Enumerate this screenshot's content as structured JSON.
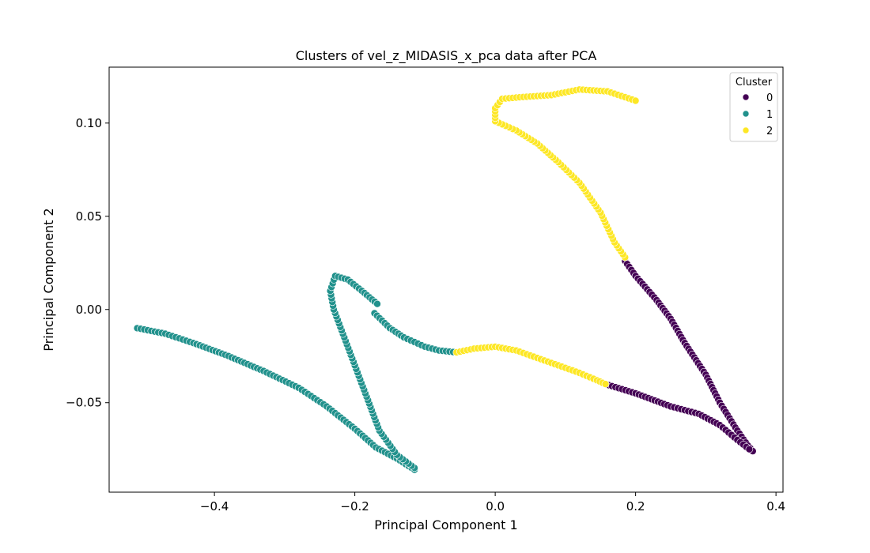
{
  "chart_data": {
    "type": "scatter",
    "title": "Clusters of vel_z_MIDASIS_x_pca data after PCA",
    "xlabel": "Principal Component 1",
    "ylabel": "Principal Component 2",
    "xlim": [
      -0.55,
      0.41
    ],
    "ylim": [
      -0.098,
      0.13
    ],
    "xticks": [
      -0.4,
      -0.2,
      0.0,
      0.2,
      0.4
    ],
    "xtick_labels": [
      "−0.4",
      "−0.2",
      "0.0",
      "0.2",
      "0.4"
    ],
    "yticks": [
      -0.05,
      0.0,
      0.05,
      0.1
    ],
    "ytick_labels": [
      "−0.05",
      "0.00",
      "0.05",
      "0.10"
    ],
    "grid": false,
    "legend": {
      "title": "Cluster",
      "placement": "top-right",
      "entries": [
        {
          "label": "0",
          "color": "#440154"
        },
        {
          "label": "1",
          "color": "#21918c"
        },
        {
          "label": "2",
          "color": "#fde725"
        }
      ]
    },
    "series": [
      {
        "name": "0",
        "color": "#440154",
        "paths": [
          [
            [
              0.185,
              0.026
            ],
            [
              0.2,
              0.018
            ],
            [
              0.23,
              0.005
            ],
            [
              0.25,
              -0.005
            ],
            [
              0.27,
              -0.018
            ],
            [
              0.3,
              -0.035
            ],
            [
              0.32,
              -0.05
            ],
            [
              0.345,
              -0.065
            ],
            [
              0.36,
              -0.073
            ],
            [
              0.367,
              -0.076
            ]
          ],
          [
            [
              0.157,
              -0.04
            ],
            [
              0.2,
              -0.045
            ],
            [
              0.25,
              -0.052
            ],
            [
              0.29,
              -0.056
            ],
            [
              0.32,
              -0.062
            ],
            [
              0.345,
              -0.07
            ],
            [
              0.362,
              -0.075
            ]
          ]
        ]
      },
      {
        "name": "1",
        "color": "#21918c",
        "paths": [
          [
            [
              -0.51,
              -0.01
            ],
            [
              -0.47,
              -0.013
            ],
            [
              -0.43,
              -0.018
            ],
            [
              -0.38,
              -0.025
            ],
            [
              -0.33,
              -0.033
            ],
            [
              -0.28,
              -0.042
            ],
            [
              -0.24,
              -0.052
            ],
            [
              -0.2,
              -0.064
            ],
            [
              -0.17,
              -0.074
            ],
            [
              -0.14,
              -0.08
            ],
            [
              -0.115,
              -0.086
            ]
          ],
          [
            [
              -0.115,
              -0.085
            ],
            [
              -0.14,
              -0.078
            ],
            [
              -0.165,
              -0.065
            ],
            [
              -0.185,
              -0.045
            ],
            [
              -0.2,
              -0.03
            ],
            [
              -0.215,
              -0.015
            ],
            [
              -0.23,
              0.0
            ],
            [
              -0.235,
              0.01
            ],
            [
              -0.228,
              0.018
            ],
            [
              -0.21,
              0.016
            ],
            [
              -0.19,
              0.01
            ],
            [
              -0.168,
              0.003
            ]
          ],
          [
            [
              -0.172,
              -0.002
            ],
            [
              -0.15,
              -0.01
            ],
            [
              -0.13,
              -0.015
            ],
            [
              -0.1,
              -0.02
            ],
            [
              -0.08,
              -0.022
            ],
            [
              -0.055,
              -0.023
            ]
          ]
        ]
      },
      {
        "name": "2",
        "color": "#fde725",
        "paths": [
          [
            [
              -0.055,
              -0.023
            ],
            [
              -0.03,
              -0.021
            ],
            [
              0.0,
              -0.02
            ],
            [
              0.03,
              -0.022
            ],
            [
              0.06,
              -0.026
            ],
            [
              0.09,
              -0.03
            ],
            [
              0.12,
              -0.034
            ],
            [
              0.145,
              -0.038
            ],
            [
              0.157,
              -0.04
            ]
          ],
          [
            [
              0.185,
              0.028
            ],
            [
              0.17,
              0.036
            ],
            [
              0.15,
              0.052
            ],
            [
              0.12,
              0.068
            ],
            [
              0.09,
              0.079
            ],
            [
              0.06,
              0.089
            ],
            [
              0.03,
              0.096
            ],
            [
              0.0,
              0.101
            ]
          ],
          [
            [
              0.0,
              0.101
            ],
            [
              0.0,
              0.108
            ],
            [
              0.01,
              0.113
            ],
            [
              0.04,
              0.114
            ],
            [
              0.08,
              0.115
            ],
            [
              0.12,
              0.118
            ],
            [
              0.16,
              0.117
            ],
            [
              0.2,
              0.112
            ]
          ]
        ]
      }
    ]
  }
}
